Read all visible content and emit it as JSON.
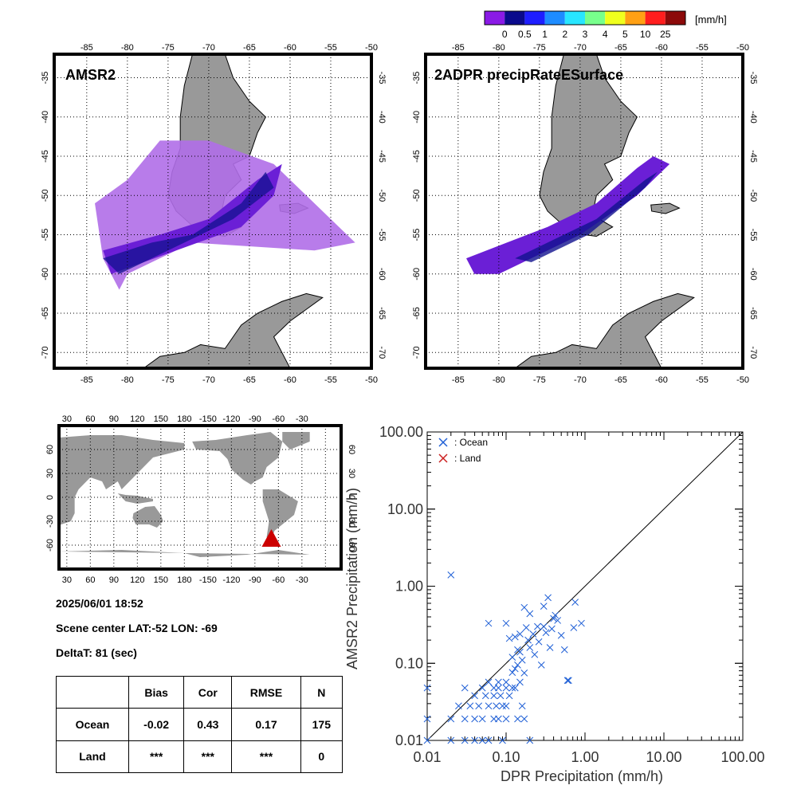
{
  "colorbar": {
    "unit": "[mm/h]",
    "ticks": [
      "0",
      "0.5",
      "1",
      "2",
      "3",
      "4",
      "5",
      "10",
      "25"
    ],
    "colors": [
      "#8a1ae6",
      "#0a0a8c",
      "#1e1eff",
      "#1e8cff",
      "#28e6ff",
      "#78ff8c",
      "#f0ff1e",
      "#ffa014",
      "#ff1e1e",
      "#8c0a0a"
    ]
  },
  "maps": [
    {
      "title": "AMSR2",
      "lon_ticks": [
        "-85",
        "-80",
        "-75",
        "-70",
        "-65",
        "-60",
        "-55",
        "-50"
      ],
      "lat_ticks": [
        "-35",
        "-40",
        "-45",
        "-50",
        "-55",
        "-60",
        "-65",
        "-70"
      ]
    },
    {
      "title": "2ADPR precipRateESurface",
      "lon_ticks": [
        "-85",
        "-80",
        "-75",
        "-70",
        "-65",
        "-60",
        "-55",
        "-50"
      ],
      "lat_ticks": [
        "-35",
        "-40",
        "-45",
        "-50",
        "-55",
        "-60",
        "-65",
        "-70"
      ]
    }
  ],
  "world_map": {
    "lon_ticks": [
      "30",
      "60",
      "90",
      "120",
      "150",
      "180",
      "-150",
      "-120",
      "-90",
      "-60",
      "-30"
    ],
    "lat_ticks": [
      "60",
      "30",
      "0",
      "-30",
      "-60"
    ],
    "marker": {
      "lat": -52,
      "lon": -69,
      "color": "#cc0000"
    }
  },
  "info": {
    "datetime": "2025/06/01 18:52",
    "scene_center": "Scene center LAT:-52   LON: -69",
    "deltat": "DeltaT:   81 (sec)"
  },
  "stats_table": {
    "headers": [
      "",
      "Bias",
      "Cor",
      "RMSE",
      "N"
    ],
    "rows": [
      [
        "Ocean",
        "-0.02",
        "0.43",
        "0.17",
        "175"
      ],
      [
        "Land",
        "***",
        "***",
        "***",
        "0"
      ]
    ]
  },
  "chart_data": {
    "type": "scatter",
    "xlabel": "DPR Precipitation (mm/h)",
    "ylabel": "AMSR2 Precipitation (mm/h)",
    "xlim": [
      0.01,
      100
    ],
    "ylim": [
      0.01,
      100
    ],
    "scale": "log",
    "tick_labels": [
      "0.01",
      "0.10",
      "1.00",
      "10.00",
      "100.00"
    ],
    "legend": "top-left",
    "series": [
      {
        "name": ": Ocean",
        "color": "#1f5fd6",
        "points": [
          [
            0.01,
            0.048
          ],
          [
            0.01,
            0.019
          ],
          [
            0.01,
            0.01
          ],
          [
            0.02,
            1.4
          ],
          [
            0.02,
            0.01
          ],
          [
            0.02,
            0.019
          ],
          [
            0.025,
            0.028
          ],
          [
            0.03,
            0.048
          ],
          [
            0.03,
            0.019
          ],
          [
            0.03,
            0.01
          ],
          [
            0.035,
            0.028
          ],
          [
            0.04,
            0.038
          ],
          [
            0.04,
            0.019
          ],
          [
            0.04,
            0.01
          ],
          [
            0.045,
            0.028
          ],
          [
            0.05,
            0.048
          ],
          [
            0.05,
            0.019
          ],
          [
            0.05,
            0.01
          ],
          [
            0.055,
            0.038
          ],
          [
            0.06,
            0.33
          ],
          [
            0.06,
            0.057
          ],
          [
            0.06,
            0.028
          ],
          [
            0.06,
            0.01
          ],
          [
            0.07,
            0.048
          ],
          [
            0.07,
            0.038
          ],
          [
            0.07,
            0.019
          ],
          [
            0.075,
            0.028
          ],
          [
            0.08,
            0.057
          ],
          [
            0.08,
            0.048
          ],
          [
            0.08,
            0.019
          ],
          [
            0.085,
            0.038
          ],
          [
            0.09,
            0.028
          ],
          [
            0.09,
            0.01
          ],
          [
            0.1,
            0.33
          ],
          [
            0.1,
            0.057
          ],
          [
            0.1,
            0.048
          ],
          [
            0.1,
            0.028
          ],
          [
            0.1,
            0.019
          ],
          [
            0.11,
            0.21
          ],
          [
            0.11,
            0.038
          ],
          [
            0.12,
            0.12
          ],
          [
            0.12,
            0.076
          ],
          [
            0.12,
            0.048
          ],
          [
            0.13,
            0.22
          ],
          [
            0.13,
            0.085
          ],
          [
            0.13,
            0.048
          ],
          [
            0.14,
            0.15
          ],
          [
            0.14,
            0.095
          ],
          [
            0.14,
            0.019
          ],
          [
            0.15,
            0.24
          ],
          [
            0.15,
            0.14
          ],
          [
            0.15,
            0.057
          ],
          [
            0.16,
            0.11
          ],
          [
            0.16,
            0.028
          ],
          [
            0.17,
            0.53
          ],
          [
            0.17,
            0.075
          ],
          [
            0.17,
            0.019
          ],
          [
            0.18,
            0.29
          ],
          [
            0.19,
            0.2
          ],
          [
            0.2,
            0.44
          ],
          [
            0.2,
            0.16
          ],
          [
            0.2,
            0.01
          ],
          [
            0.22,
            0.24
          ],
          [
            0.23,
            0.13
          ],
          [
            0.25,
            0.3
          ],
          [
            0.26,
            0.19
          ],
          [
            0.28,
            0.095
          ],
          [
            0.3,
            0.55
          ],
          [
            0.3,
            0.3
          ],
          [
            0.32,
            0.25
          ],
          [
            0.34,
            0.71
          ],
          [
            0.36,
            0.16
          ],
          [
            0.38,
            0.28
          ],
          [
            0.4,
            0.38
          ],
          [
            0.42,
            0.42
          ],
          [
            0.45,
            0.36
          ],
          [
            0.5,
            0.23
          ],
          [
            0.55,
            0.15
          ],
          [
            0.6,
            0.06
          ],
          [
            0.62,
            0.06
          ],
          [
            0.72,
            0.29
          ],
          [
            0.75,
            0.62
          ],
          [
            0.9,
            0.33
          ]
        ]
      },
      {
        "name": ": Land",
        "color": "#cc1f1f",
        "points": []
      }
    ]
  }
}
